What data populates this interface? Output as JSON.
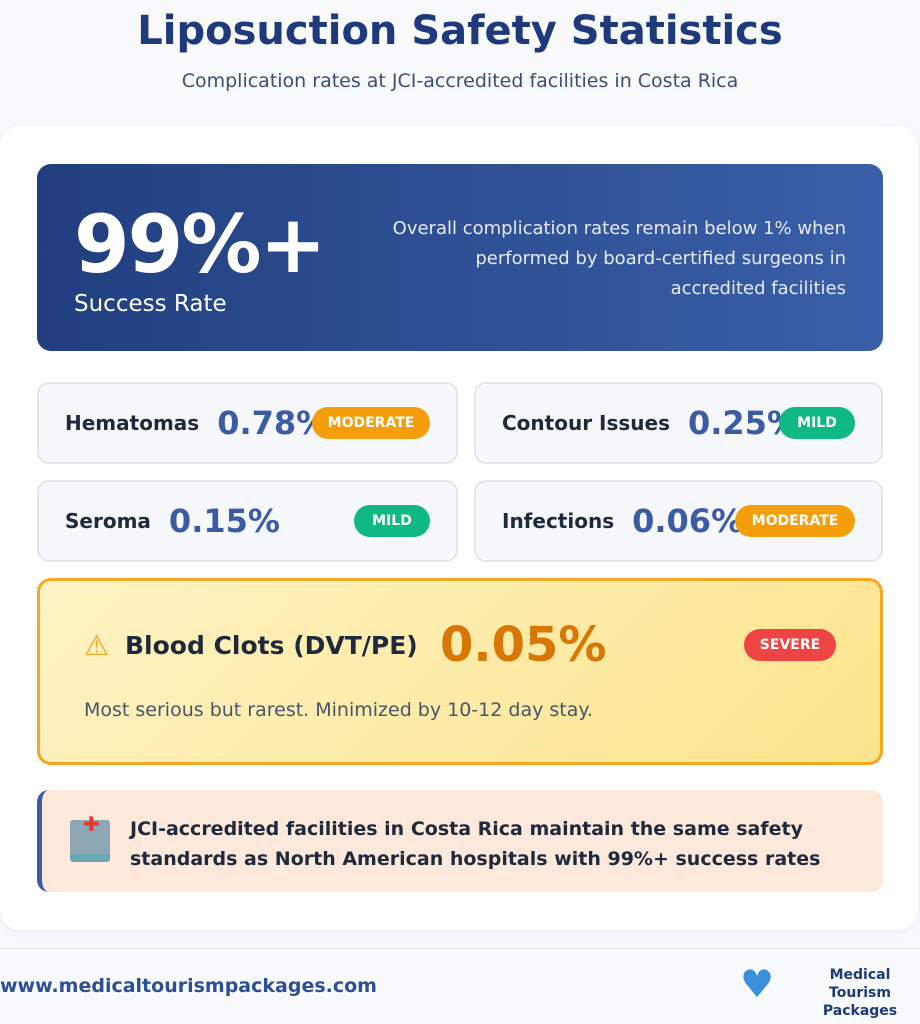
{
  "header": {
    "title": "Liposuction Safety Statistics",
    "subtitle": "Complication rates at JCI-accredited facilities in Costa Rica"
  },
  "hero": {
    "value": "99%+",
    "label": "Success Rate",
    "description": "Overall complication rates remain below 1% when performed by board-certified surgeons in accredited facilities"
  },
  "stats": [
    {
      "label": "Hematomas",
      "value": "0.78%",
      "severity": "MODERATE",
      "color": "#f59e0b"
    },
    {
      "label": "Contour Issues",
      "value": "0.25%",
      "severity": "MILD",
      "color": "#10b981"
    },
    {
      "label": "Seroma",
      "value": "0.15%",
      "severity": "MILD",
      "color": "#10b981"
    },
    {
      "label": "Infections",
      "value": "0.06%",
      "severity": "MODERATE",
      "color": "#f59e0b"
    }
  ],
  "clot": {
    "icon": "warning-icon",
    "label": "Blood Clots (DVT/PE)",
    "value": "0.05%",
    "severity": "SEVERE",
    "color": "#ef4444",
    "note": "Most serious but rarest. Minimized by 10-12 day stay."
  },
  "note": {
    "icon": "hospital-icon",
    "text": "JCI-accredited facilities in Costa Rica maintain the same safety standards as North American hospitals with 99%+ success rates"
  },
  "footer": {
    "url": "www.medicaltourismpackages.com",
    "logo_text": "Medical Tourism Packages"
  }
}
